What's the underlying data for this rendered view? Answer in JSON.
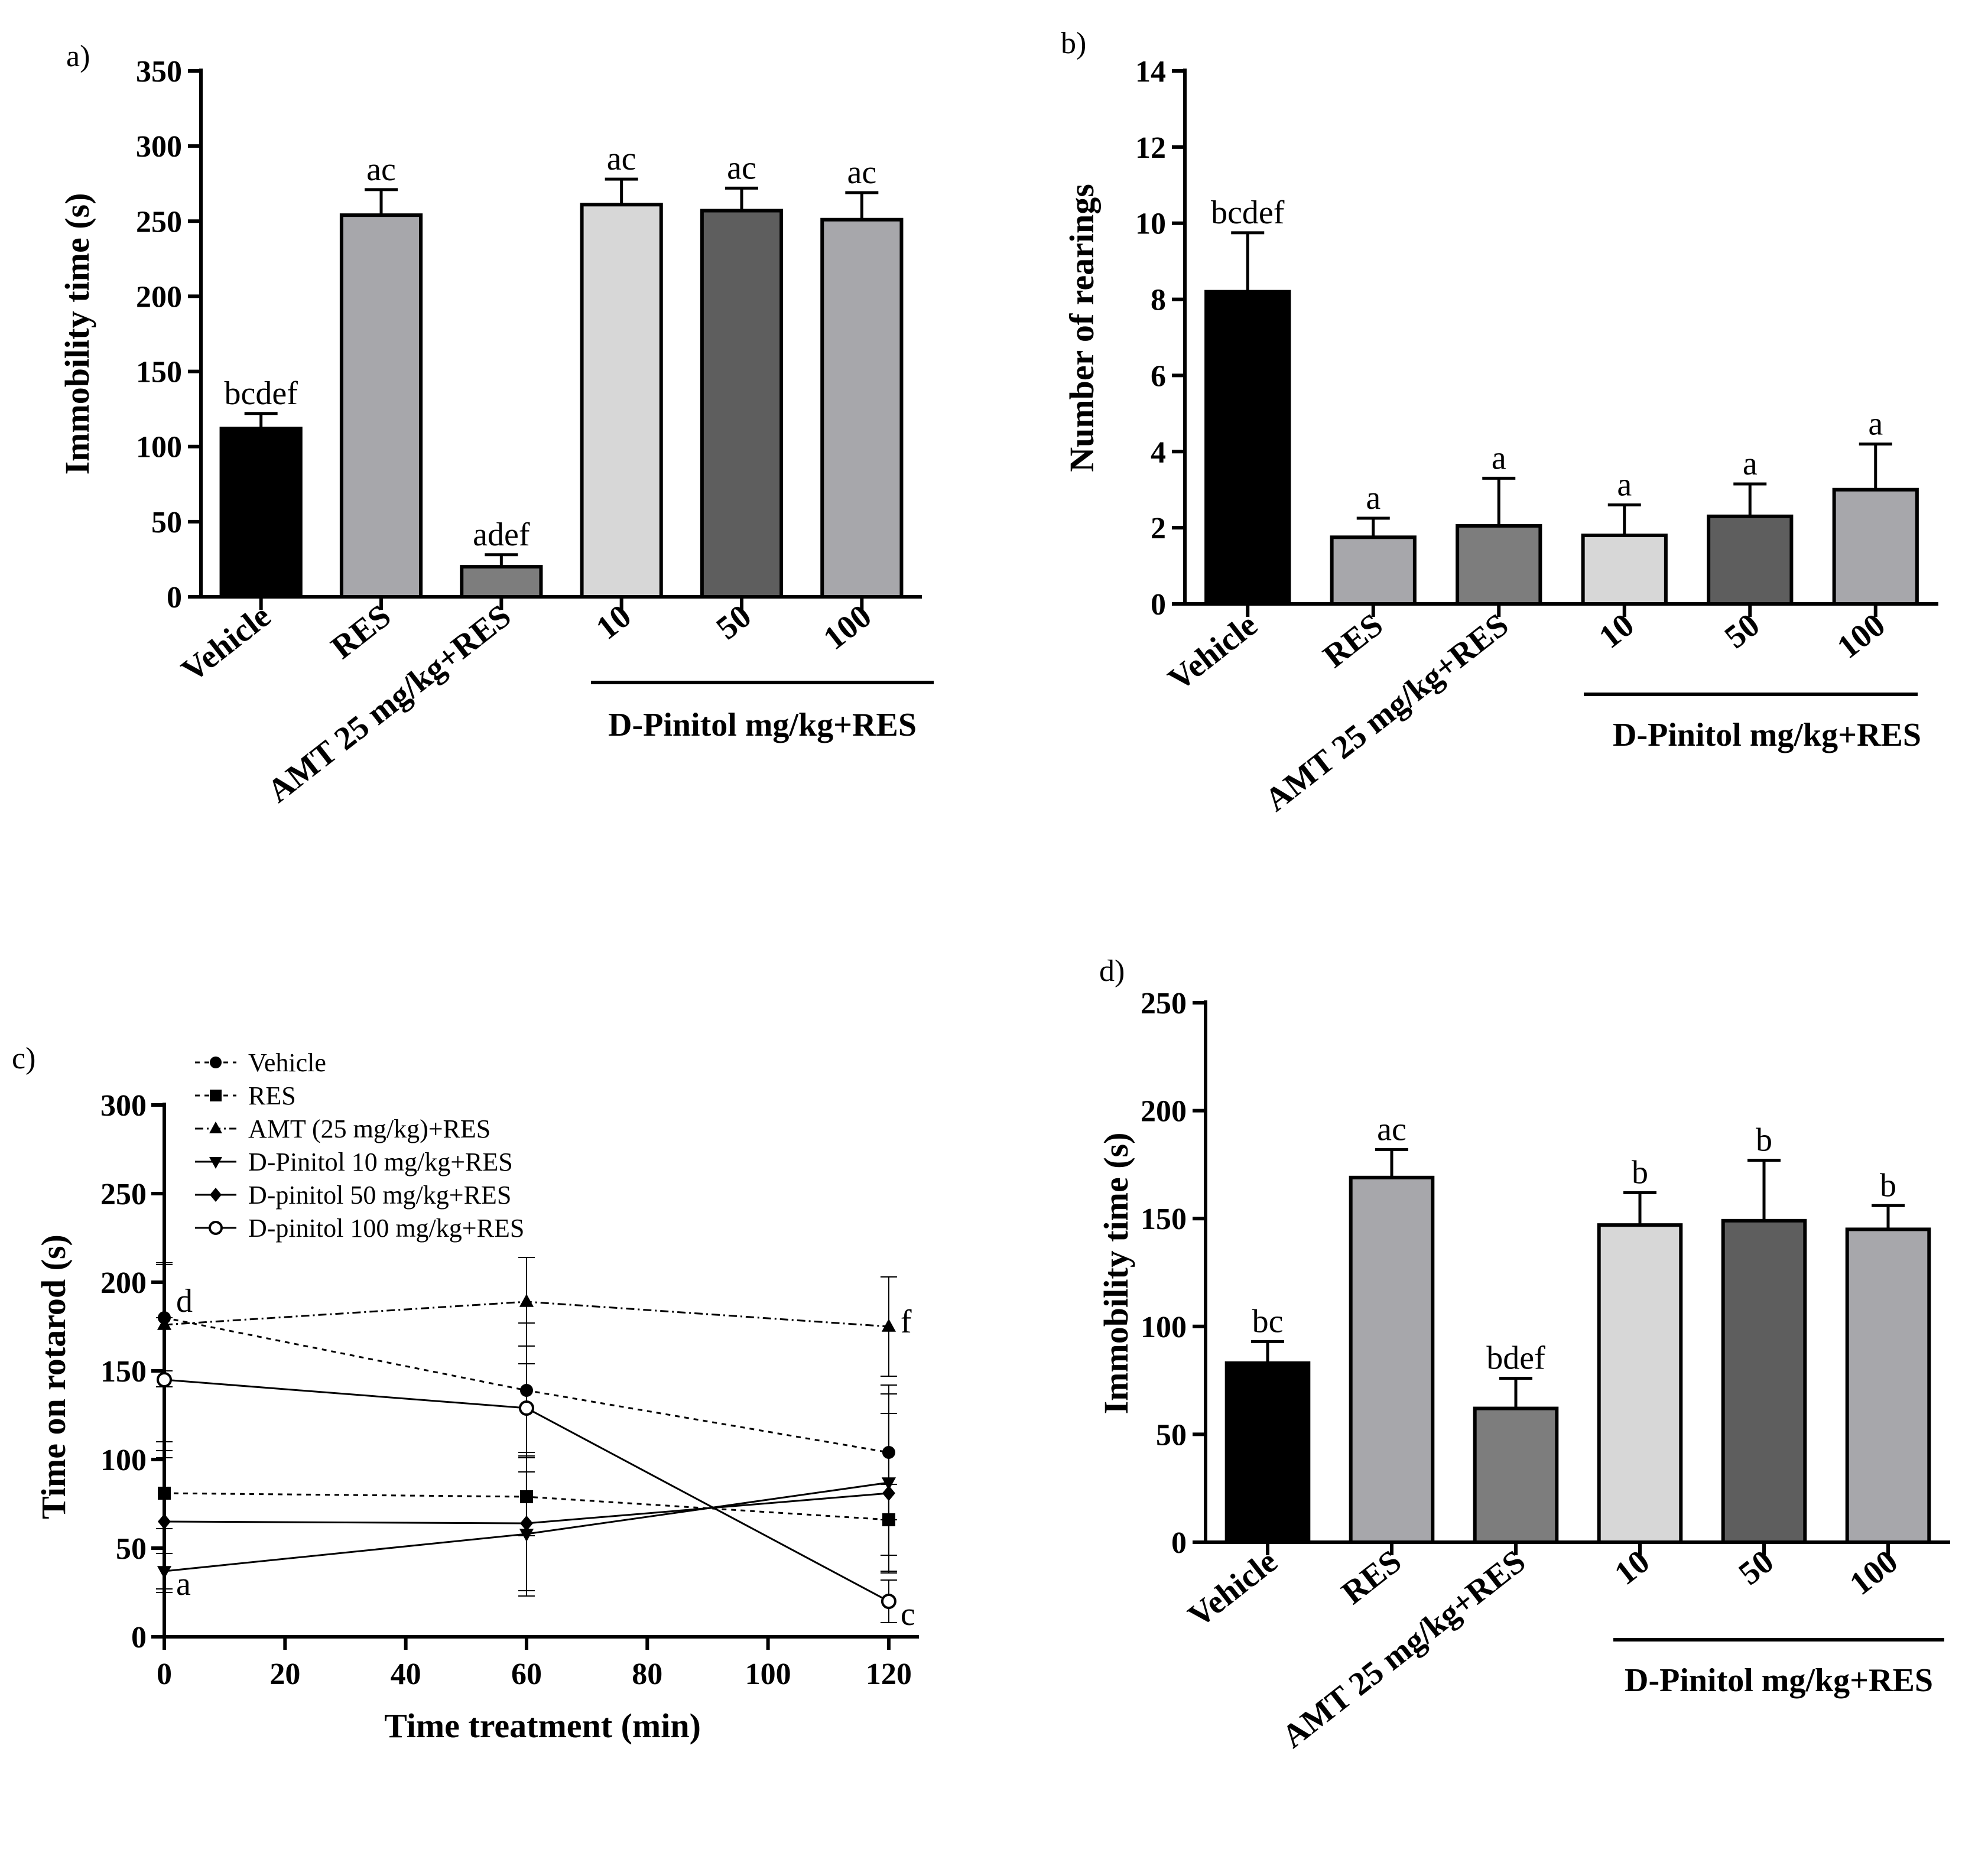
{
  "chart_data": [
    {
      "id": "a",
      "type": "bar",
      "panel_label": "a)",
      "ylabel": "Immobility time (s)",
      "ylim": [
        0,
        350
      ],
      "yticks": [
        "0",
        "50",
        "100",
        "150",
        "200",
        "250",
        "300",
        "350"
      ],
      "categories": [
        "Vehicle",
        "RES",
        "AMT 25 mg/kg+RES",
        "10",
        "50",
        "100"
      ],
      "group_label": "D-Pinitol mg/kg+RES",
      "values": [
        112,
        254,
        20,
        261,
        257,
        251
      ],
      "errors": [
        10,
        17,
        8,
        17,
        15,
        18
      ],
      "letters": [
        "bcdef",
        "ac",
        "adef",
        "ac",
        "ac",
        "ac"
      ],
      "colors": [
        "#000000",
        "#a7a7ab",
        "#7d7d7d",
        "#d7d7d7",
        "#5e5e5e",
        "#a7a7ab"
      ]
    },
    {
      "id": "b",
      "type": "bar",
      "panel_label": "b)",
      "ylabel": "Number of rearings",
      "ylim": [
        0,
        14
      ],
      "yticks": [
        "0",
        "2",
        "4",
        "6",
        "8",
        "10",
        "12",
        "14"
      ],
      "categories": [
        "Vehicle",
        "RES",
        "AMT 25 mg/kg+RES",
        "10",
        "50",
        "100"
      ],
      "group_label": "D-Pinitol mg/kg+RES",
      "values": [
        8.2,
        1.75,
        2.05,
        1.8,
        2.3,
        3.0
      ],
      "errors": [
        1.55,
        0.5,
        1.25,
        0.8,
        0.85,
        1.2
      ],
      "letters": [
        "bcdef",
        "a",
        "a",
        "a",
        "a",
        "a"
      ],
      "colors": [
        "#000000",
        "#a7a7ab",
        "#7d7d7d",
        "#d7d7d7",
        "#5e5e5e",
        "#a7a7ab"
      ]
    },
    {
      "id": "c",
      "type": "line",
      "panel_label": "c)",
      "ylabel": "Time on rotarod (s)",
      "xlabel": "Time treatment (min)",
      "xlim": [
        0,
        125
      ],
      "ylim": [
        0,
        300
      ],
      "xticks": [
        0,
        20,
        40,
        60,
        80,
        100,
        120
      ],
      "xtick_labels": [
        "0",
        "20",
        "40",
        "60",
        "80",
        "100",
        "120"
      ],
      "yticks": [
        0,
        50,
        100,
        150,
        200,
        250,
        300
      ],
      "ytick_labels": [
        "0",
        "50",
        "100",
        "150",
        "200",
        "250",
        "300"
      ],
      "x": [
        0,
        60,
        120
      ],
      "series": [
        {
          "name": "Vehicle",
          "marker": "circle",
          "dash": "short",
          "values": [
            180,
            139,
            104
          ],
          "errors": [
            30,
            38,
            38
          ]
        },
        {
          "name": "RES",
          "marker": "square",
          "dash": "short",
          "values": [
            81,
            79,
            66
          ],
          "errors": [
            20,
            22,
            20
          ]
        },
        {
          "name": "AMT (25 mg/kg)+RES",
          "marker": "triangle",
          "dash": "dashdot",
          "values": [
            176,
            189,
            175
          ],
          "errors": [
            35,
            25,
            28
          ]
        },
        {
          "name": "D-Pinitol 10 mg/kg+RES",
          "marker": "triangle-down",
          "dash": "solid",
          "values": [
            37,
            58,
            87
          ],
          "errors": [
            10,
            35,
            50
          ]
        },
        {
          "name": "D-pinitol 50 mg/kg+RES",
          "marker": "diamond",
          "dash": "solid",
          "values": [
            65,
            64,
            81
          ],
          "errors": [
            40,
            38,
            45
          ]
        },
        {
          "name": "D-pinitol 100 mg/kg+RES",
          "marker": "open-circle",
          "dash": "solid",
          "values": [
            145,
            129,
            20
          ],
          "errors": [
            35,
            25,
            12
          ]
        }
      ],
      "annotations": [
        {
          "text": "d",
          "x": 0,
          "y": 180
        },
        {
          "text": "f",
          "x": 120,
          "y": 175
        },
        {
          "text": "a",
          "x": 0,
          "y": 37
        },
        {
          "text": "c",
          "x": 120,
          "y": 20
        }
      ]
    },
    {
      "id": "d",
      "type": "bar",
      "panel_label": "d)",
      "ylabel": "Immobility time (s)",
      "ylim": [
        0,
        250
      ],
      "yticks": [
        "0",
        "50",
        "100",
        "150",
        "200",
        "250"
      ],
      "categories": [
        "Vehicle",
        "RES",
        "AMT 25 mg/kg+RES",
        "10",
        "50",
        "100"
      ],
      "group_label": "D-Pinitol mg/kg+RES",
      "values": [
        83,
        169,
        62,
        147,
        149,
        145
      ],
      "errors": [
        10,
        13,
        14,
        15,
        28,
        11
      ],
      "letters": [
        "bc",
        "ac",
        "bdef",
        "b",
        "b",
        "b"
      ],
      "colors": [
        "#000000",
        "#a7a7ab",
        "#7d7d7d",
        "#d7d7d7",
        "#5e5e5e",
        "#a7a7ab"
      ]
    }
  ]
}
